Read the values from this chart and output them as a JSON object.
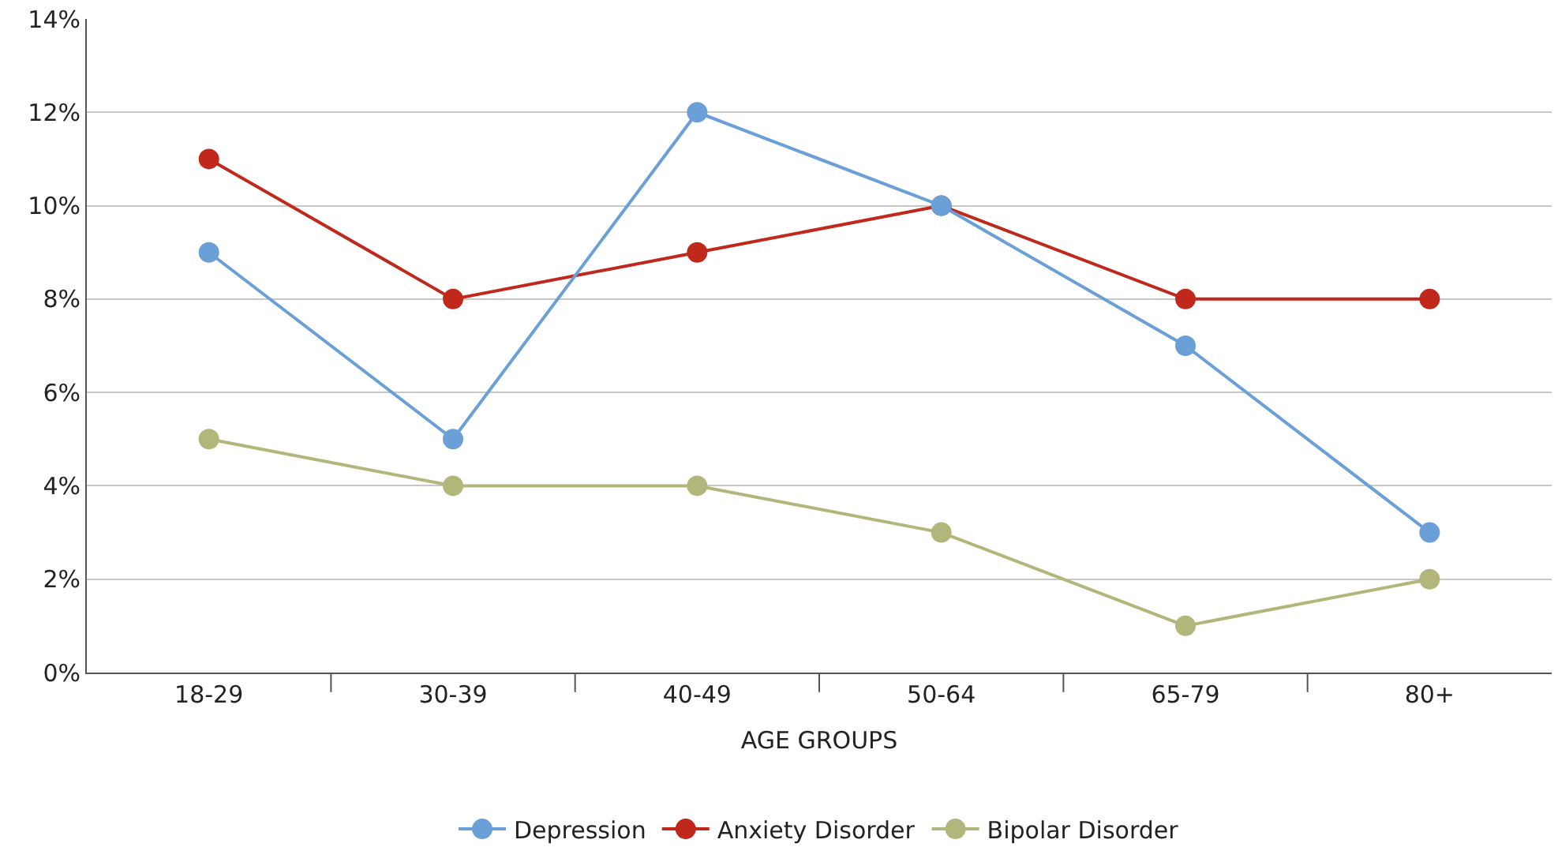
{
  "chart_data": {
    "type": "line",
    "xlabel": "AGE GROUPS",
    "categories": [
      "18-29",
      "30-39",
      "40-49",
      "50-64",
      "65-79",
      "80+"
    ],
    "series": [
      {
        "name": "Depression",
        "color": "#6a9fd8",
        "values": [
          9,
          5,
          12,
          10,
          7,
          3
        ]
      },
      {
        "name": "Anxiety Disorder",
        "color": "#c0281c",
        "values": [
          11,
          8,
          9,
          10,
          8,
          8
        ]
      },
      {
        "name": "Bipolar Disorder",
        "color": "#b3b67a",
        "values": [
          5,
          4,
          4,
          3,
          1,
          2
        ]
      }
    ],
    "ylim": [
      0,
      14
    ],
    "yticks": [
      {
        "value": 0,
        "label": "0%"
      },
      {
        "value": 2,
        "label": "2%"
      },
      {
        "value": 4,
        "label": "4%"
      },
      {
        "value": 6,
        "label": "6%"
      },
      {
        "value": 8,
        "label": "8%"
      },
      {
        "value": 10,
        "label": "10%"
      },
      {
        "value": 12,
        "label": "12%"
      },
      {
        "value": 14,
        "label": "14%"
      }
    ],
    "grid": "y",
    "legend": "bottom",
    "marker": "circle",
    "line_style": "solid"
  }
}
